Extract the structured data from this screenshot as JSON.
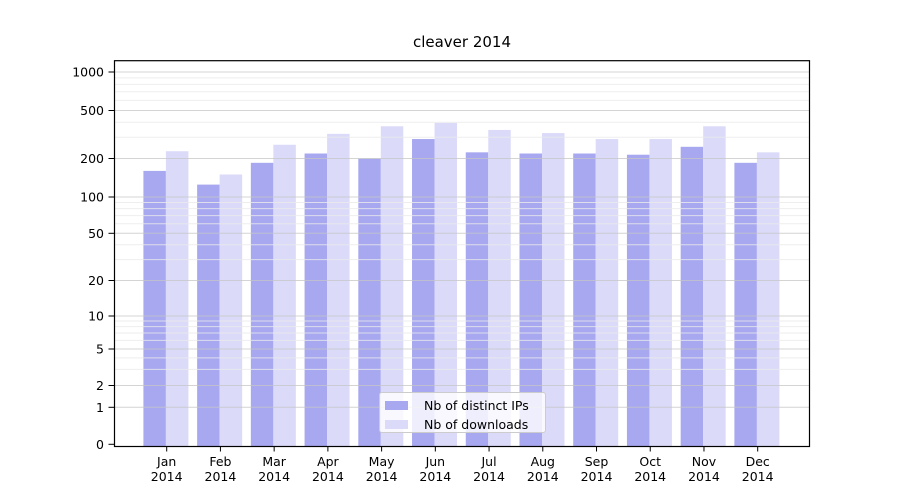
{
  "chart_data": {
    "type": "bar",
    "title": "cleaver 2014",
    "categories": [
      "Jan",
      "Feb",
      "Mar",
      "Apr",
      "May",
      "Jun",
      "Jul",
      "Aug",
      "Sep",
      "Oct",
      "Nov",
      "Dec"
    ],
    "x_year_label": "2014",
    "series": [
      {
        "name": "Nb of distinct IPs",
        "color": "#a8a8f0",
        "values": [
          160,
          125,
          185,
          220,
          200,
          290,
          225,
          220,
          220,
          215,
          250,
          185
        ]
      },
      {
        "name": "Nb of downloads",
        "color": "#dbdbf9",
        "values": [
          230,
          150,
          260,
          320,
          370,
          395,
          345,
          325,
          290,
          290,
          370,
          225
        ]
      }
    ],
    "yscale": "symlog",
    "yticks": [
      0,
      1,
      2,
      5,
      10,
      20,
      50,
      100,
      200,
      500,
      1000
    ],
    "yminor_gridlines": [
      3,
      4,
      6,
      7,
      8,
      9,
      30,
      40,
      60,
      70,
      80,
      90,
      300,
      400,
      600,
      700,
      800,
      900
    ],
    "ylim": [
      0,
      1250
    ],
    "grid": true,
    "legend_position": "lower center"
  },
  "colors": {
    "bar_ips": "#a8a8f0",
    "bar_downloads": "#dbdbf9",
    "grid_major": "#c6c6c6",
    "grid_minor": "#eaeaea",
    "spine": "#000000",
    "text": "#000000",
    "background": "#ffffff"
  }
}
